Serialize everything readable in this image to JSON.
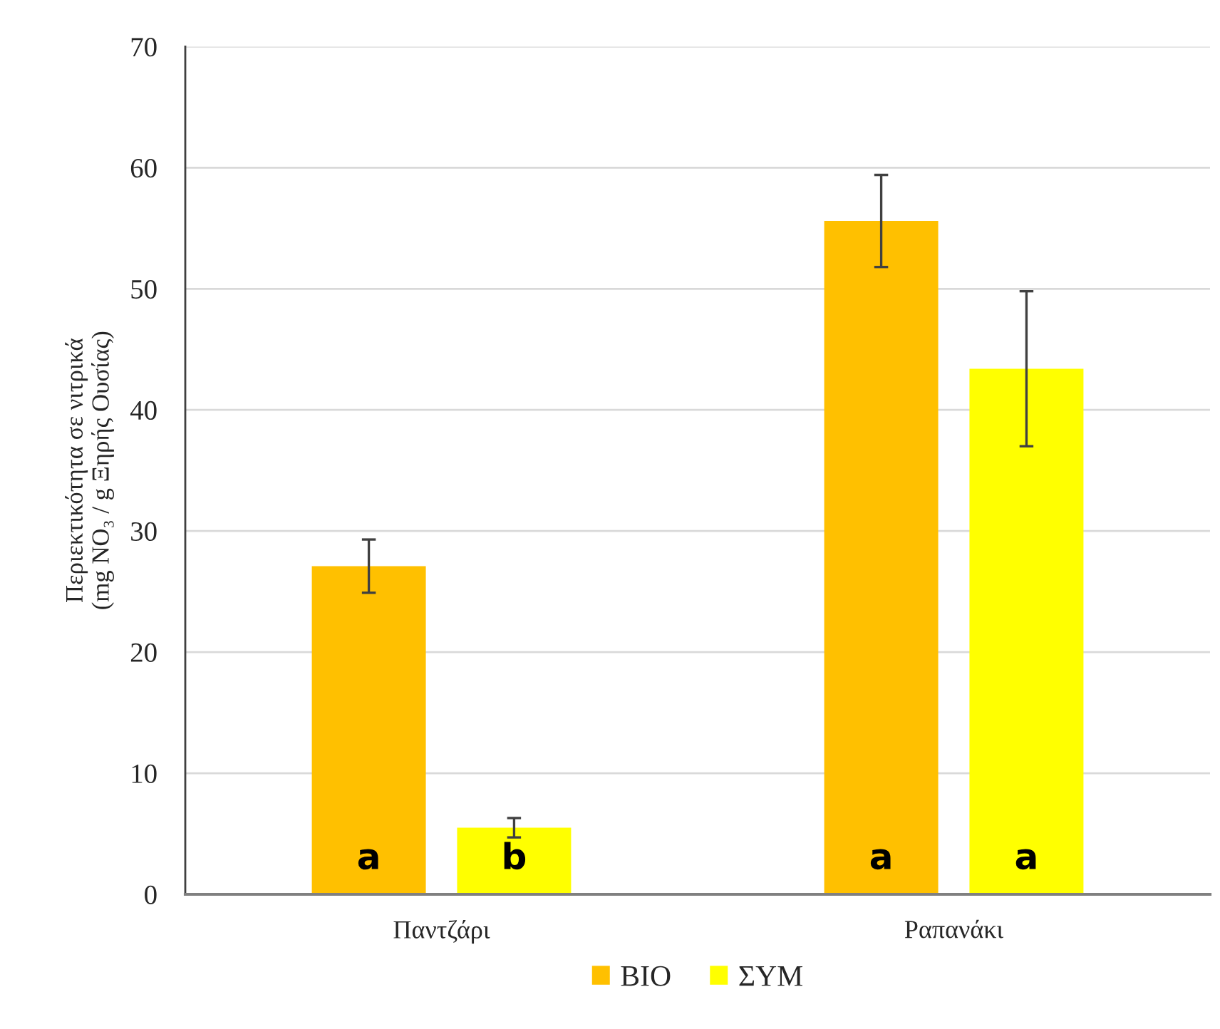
{
  "chart_data": {
    "type": "bar",
    "ylabel": "Περιεκτικότητα σε νιτρικά\n(mg NO₃ / g Ξηρής Ουσίας)",
    "categories": [
      "Παντζάρι",
      "Ραπανάκι"
    ],
    "series": [
      {
        "name": "ΒΙΟ",
        "color": "#ffc000",
        "values": [
          27.1,
          55.6
        ],
        "errors": [
          2.2,
          3.8
        ],
        "value_labels": [
          "a",
          "a"
        ]
      },
      {
        "name": "ΣΥΜ",
        "color": "#ffff00",
        "values": [
          5.5,
          43.4
        ],
        "errors": [
          0.8,
          6.4
        ],
        "value_labels": [
          "b",
          "a"
        ]
      }
    ],
    "ylim": [
      0,
      70
    ],
    "yticks": [
      0,
      10,
      20,
      30,
      40,
      50,
      60,
      70
    ],
    "grid": "y",
    "legend": "bottom"
  }
}
